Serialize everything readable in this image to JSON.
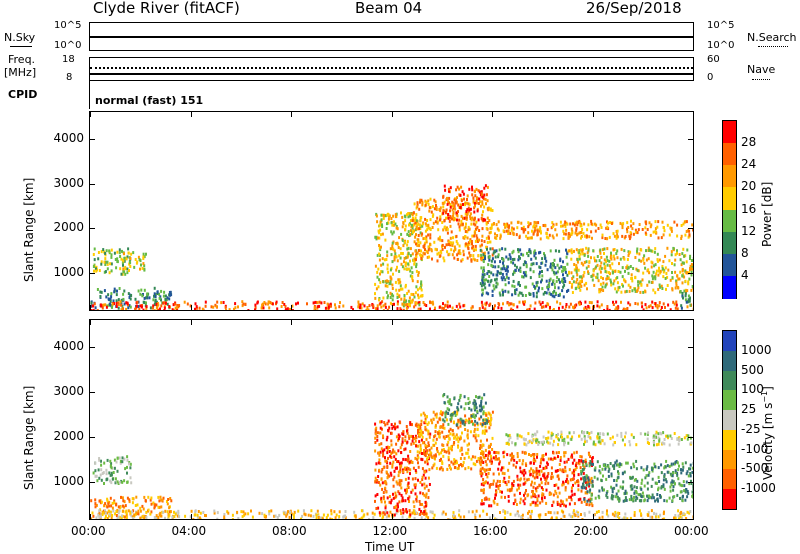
{
  "header": {
    "station": "Clyde River (fitACF)",
    "beam": "Beam 04",
    "date": "26/Sep/2018"
  },
  "top_panels": {
    "nsky": {
      "label": "N.Sky",
      "ticks": [
        "10^5",
        "10^0"
      ]
    },
    "nsearch": {
      "label": "N.Search",
      "ticks": [
        "10^5",
        "10^0"
      ]
    },
    "freq": {
      "label_top": "Freq.",
      "label_unit": "[MHz]",
      "ticks": [
        "18",
        "8"
      ]
    },
    "nave": {
      "label": "Nave",
      "ticks": [
        "60",
        "0"
      ]
    },
    "cpid": {
      "label": "CPID",
      "value": "normal (fast) 151"
    }
  },
  "chart_data": [
    {
      "type": "heatmap",
      "name": "power",
      "xlabel": "Time UT",
      "ylabel": "Slant Range [km]",
      "x_ticks": [
        "00:00",
        "04:00",
        "08:00",
        "12:00",
        "16:00",
        "20:00",
        "00:00"
      ],
      "x_range_hours": [
        0,
        24
      ],
      "y_ticks": [
        1000,
        2000,
        3000,
        4000
      ],
      "ylim": [
        180,
        4600
      ],
      "colorbar": {
        "label": "Power [dB]",
        "ticks": [
          "28",
          "24",
          "20",
          "16",
          "12",
          "8",
          "4"
        ],
        "colors": [
          "#ff0000",
          "#ff6000",
          "#ff9900",
          "#ffcc00",
          "#66bb44",
          "#338855",
          "#225599",
          "#0000ff"
        ]
      },
      "echo_regions": [
        {
          "t0": 0.0,
          "t1": 3.2,
          "r0": 250,
          "r1": 700,
          "level": 5
        },
        {
          "t0": 0.1,
          "t1": 1.6,
          "r0": 1000,
          "r1": 1600,
          "level": 4
        },
        {
          "t0": 1.2,
          "t1": 2.2,
          "r0": 1100,
          "r1": 1500,
          "level": 3
        },
        {
          "t0": 0.0,
          "t1": 24.0,
          "r0": 200,
          "r1": 400,
          "level": 1
        },
        {
          "t0": 11.3,
          "t1": 13.2,
          "r0": 300,
          "r1": 2400,
          "level": 3
        },
        {
          "t0": 12.8,
          "t1": 16.0,
          "r0": 1300,
          "r1": 2700,
          "level": 2
        },
        {
          "t0": 14.0,
          "t1": 15.8,
          "r0": 2200,
          "r1": 3000,
          "level": 1
        },
        {
          "t0": 15.5,
          "t1": 19.0,
          "r0": 500,
          "r1": 1600,
          "level": 5
        },
        {
          "t0": 19.0,
          "t1": 24.0,
          "r0": 600,
          "r1": 1600,
          "level": 3
        },
        {
          "t0": 16.0,
          "t1": 24.0,
          "r0": 1800,
          "r1": 2200,
          "level": 2
        },
        {
          "t0": 23.4,
          "t1": 24.0,
          "r0": 250,
          "r1": 600,
          "level": 5
        }
      ]
    },
    {
      "type": "heatmap",
      "name": "velocity",
      "xlabel": "Time UT",
      "ylabel": "Slant Range [km]",
      "x_ticks": [
        "00:00",
        "04:00",
        "08:00",
        "12:00",
        "16:00",
        "20:00",
        "00:00"
      ],
      "x_range_hours": [
        0,
        24
      ],
      "y_ticks": [
        1000,
        2000,
        3000,
        4000
      ],
      "ylim": [
        180,
        4600
      ],
      "colorbar": {
        "label": "Velocity [m s^-1]",
        "ticks": [
          "1000",
          "500",
          "100",
          "25",
          "-25",
          "-100",
          "-500",
          "-1000"
        ],
        "colors": [
          "#2244bb",
          "#2f6a7a",
          "#3f8a5a",
          "#6bbb44",
          "#c8c8c0",
          "#ffcc00",
          "#ff9900",
          "#ff6000",
          "#ff0000"
        ]
      },
      "echo_regions": [
        {
          "t0": 0.0,
          "t1": 3.2,
          "r0": 250,
          "r1": 700,
          "level": 6
        },
        {
          "t0": 0.1,
          "t1": 1.6,
          "r0": 1000,
          "r1": 1600,
          "level": 3
        },
        {
          "t0": 0.0,
          "t1": 24.0,
          "r0": 200,
          "r1": 400,
          "level": 5
        },
        {
          "t0": 11.3,
          "t1": 13.5,
          "r0": 300,
          "r1": 2400,
          "level": 7
        },
        {
          "t0": 13.0,
          "t1": 16.0,
          "r0": 1300,
          "r1": 2600,
          "level": 6
        },
        {
          "t0": 14.0,
          "t1": 15.8,
          "r0": 2300,
          "r1": 3000,
          "level": 2
        },
        {
          "t0": 15.5,
          "t1": 20.0,
          "r0": 500,
          "r1": 1700,
          "level": 7
        },
        {
          "t0": 19.5,
          "t1": 24.0,
          "r0": 600,
          "r1": 1500,
          "level": 2
        },
        {
          "t0": 16.5,
          "t1": 24.0,
          "r0": 1850,
          "r1": 2150,
          "level": 4
        }
      ]
    }
  ]
}
